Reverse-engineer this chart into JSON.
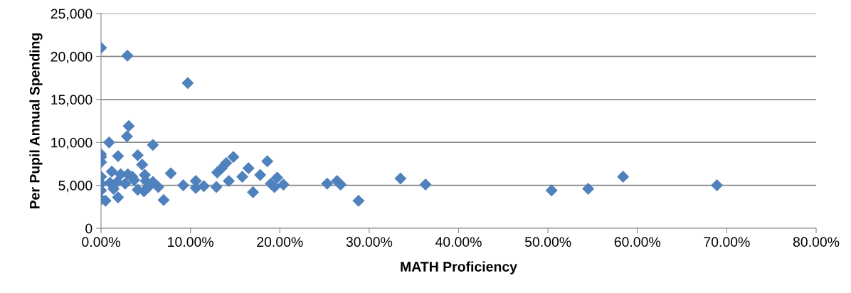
{
  "chart_data": {
    "type": "scatter",
    "xlabel": "MATH Proficiency",
    "ylabel": "Per Pupil Annual Spending",
    "marker": "diamond",
    "grid": "y",
    "color": "#4f81bd",
    "x": [
      0.0,
      2.95,
      9.7,
      3.1,
      0.9,
      2.9,
      5.8,
      0.0,
      0.0,
      1.9,
      4.1,
      0.0,
      4.6,
      14.8,
      14.0,
      13.5,
      13.0,
      16.5,
      18.6,
      7.8,
      0.0,
      1.2,
      2.2,
      3.0,
      3.5,
      4.9,
      5.0,
      15.8,
      17.8,
      19.7,
      0.0,
      1.0,
      1.8,
      2.7,
      3.7,
      5.8,
      9.2,
      10.6,
      11.5,
      12.9,
      10.6,
      14.3,
      19.0,
      20.4,
      19.4,
      0.0,
      1.4,
      4.1,
      4.8,
      5.3,
      6.4,
      0.0,
      0.5,
      1.9,
      7.0,
      17.0,
      25.3,
      26.4,
      26.8,
      28.8,
      33.5,
      36.3,
      50.4,
      54.5,
      58.4,
      68.9
    ],
    "values": [
      21000,
      20100,
      16900,
      11900,
      10000,
      10700,
      9700,
      8600,
      8300,
      8400,
      8500,
      7700,
      7400,
      8300,
      7600,
      7000,
      6500,
      7000,
      7800,
      6400,
      6000,
      6600,
      6300,
      6300,
      6000,
      6200,
      5500,
      6000,
      6200,
      5900,
      5200,
      5300,
      5400,
      5200,
      5600,
      5400,
      5000,
      5500,
      4900,
      4800,
      4700,
      5500,
      5200,
      5100,
      4800,
      4400,
      4600,
      4500,
      4300,
      4800,
      4800,
      3400,
      3200,
      3600,
      3300,
      4200,
      5200,
      5500,
      5100,
      3200,
      5800,
      5100,
      4400,
      4600,
      6000,
      5000
    ],
    "xlim": [
      0,
      80
    ],
    "xticks": [
      {
        "value": 0,
        "label": "0.00%"
      },
      {
        "value": 10,
        "label": "10.00%"
      },
      {
        "value": 20,
        "label": "20.00%"
      },
      {
        "value": 30,
        "label": "30.00%"
      },
      {
        "value": 40,
        "label": "40.00%"
      },
      {
        "value": 50,
        "label": "50.00%"
      },
      {
        "value": 60,
        "label": "60.00%"
      },
      {
        "value": 70,
        "label": "70.00%"
      },
      {
        "value": 80,
        "label": "80.00%"
      }
    ],
    "ylim": [
      0,
      25000
    ],
    "yticks": [
      {
        "value": 0,
        "label": "0"
      },
      {
        "value": 5000,
        "label": "5,000"
      },
      {
        "value": 10000,
        "label": "10,000"
      },
      {
        "value": 15000,
        "label": "15,000"
      },
      {
        "value": 20000,
        "label": "20,000"
      },
      {
        "value": 25000,
        "label": "25,000"
      }
    ]
  }
}
